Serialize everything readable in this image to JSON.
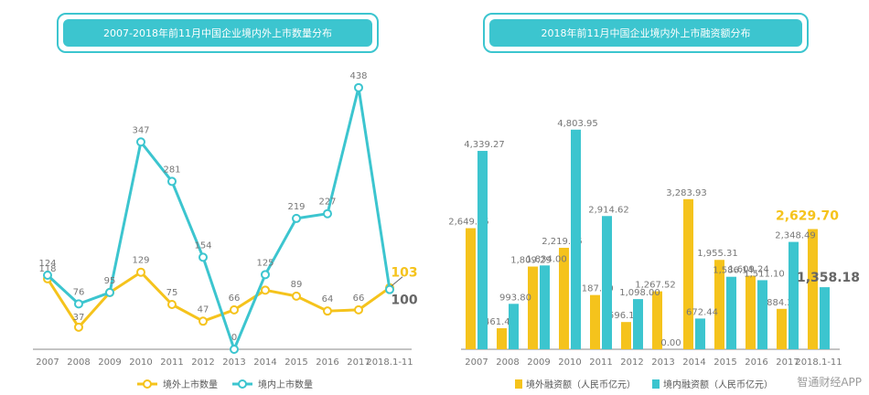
{
  "left_chart": {
    "title": "2007-2018年前11月中国企业境内外上市数量分布"
  },
  "right_chart": {
    "title": "2018年前11月中国企业境内外上市融资额分布"
  },
  "watermark": "智通财经APP",
  "colors": {
    "teal": "#3cc5cf",
    "yellow": "#f5c31c",
    "axis": "#888888",
    "label": "#777777",
    "dark_label": "#666666"
  },
  "chart_data": [
    {
      "type": "line",
      "title": "2007-2018年前11月中国企业境内外上市数量分布",
      "categories": [
        "2007",
        "2008",
        "2009",
        "2010",
        "2011",
        "2012",
        "2013",
        "2014",
        "2015",
        "2016",
        "2017",
        "2018.1-11"
      ],
      "series": [
        {
          "name": "境外上市数量",
          "color": "#f5c31c",
          "values": [
            118,
            37,
            95,
            129,
            75,
            47,
            66,
            99,
            89,
            64,
            66,
            103
          ]
        },
        {
          "name": "境内上市数量",
          "color": "#3cc5cf",
          "values": [
            124,
            76,
            95,
            347,
            281,
            154,
            0,
            125,
            219,
            227,
            438,
            100
          ]
        }
      ],
      "data_labels": {
        "境外上市数量": [
          "118",
          "37",
          "",
          "129",
          "75",
          "47",
          "66",
          "",
          "89",
          "64",
          "66",
          "103"
        ],
        "境内上市数量": [
          "124",
          "76",
          "95",
          "347",
          "281",
          "154",
          "0",
          "125",
          "219",
          "227",
          "438",
          "100"
        ]
      },
      "ylim": [
        0,
        450
      ],
      "legend": "bottom"
    },
    {
      "type": "bar",
      "title": "2018年前11月中国企业境内外上市融资额分布",
      "categories": [
        "2007",
        "2008",
        "2009",
        "2010",
        "2011",
        "2012",
        "2013",
        "2014",
        "2015",
        "2016",
        "2017",
        "2018.1-11"
      ],
      "series": [
        {
          "name": "境外融资额（人民币亿元）",
          "color": "#f5c31c",
          "values": [
            2649.05,
            461.45,
            1809.29,
            2219.45,
            1187.0,
            596.15,
            1267.52,
            3283.93,
            1955.31,
            1609.24,
            884.2,
            2629.7
          ]
        },
        {
          "name": "境内融资额（人民币亿元）",
          "color": "#3cc5cf",
          "values": [
            4339.27,
            993.8,
            1834.0,
            4803.95,
            2914.62,
            1098.0,
            0.0,
            672.44,
            1586.14,
            1511.1,
            2348.49,
            1358.18
          ]
        }
      ],
      "data_labels": {
        "境外融资额（人民币亿元）": [
          "2,649.05",
          "461.45",
          "1,809.29",
          "2,219.45",
          "1,187.00",
          "596.15",
          "1,267.52",
          "3,283.93",
          "1,955.31",
          "1,609.24",
          "884.2",
          "2,629.70"
        ],
        "境内融资额（人民币亿元）": [
          "4,339.27",
          "993.80",
          "1,834.00",
          "4,803.95",
          "2,914.62",
          "1,098.00",
          "0.00",
          "672.44",
          "1,586.14",
          "1,511.10",
          "2,348.49",
          "1,358.18"
        ]
      },
      "ylim": [
        0,
        5000
      ],
      "legend": "bottom"
    }
  ]
}
